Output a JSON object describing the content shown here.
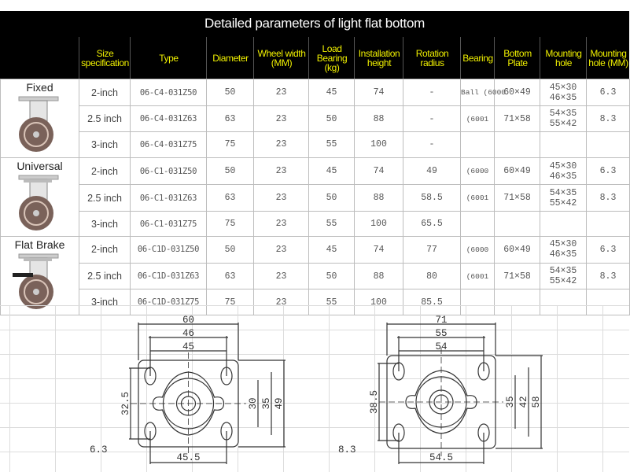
{
  "title": "Detailed parameters of light flat bottom",
  "headers": [
    "Size specification",
    "Type",
    "Diameter",
    "Wheel width (MM)",
    "Load Bearing (kg)",
    "Installation height",
    "Rotation radius",
    "Bearing",
    "Bottom Plate",
    "Mounting hole",
    "Mounting hole (MM)"
  ],
  "groups": [
    {
      "name": "Fixed",
      "icon": "fixed-caster-image",
      "rows": [
        {
          "size": "2-inch",
          "type": "06-C4-031Z50",
          "diameter": "50",
          "width": "23",
          "load": "45",
          "height": "74",
          "radius": "-",
          "bearing": "Ball (6000",
          "plate": "60×49",
          "holes": "45×30 46×35",
          "hole_mm": "6.3"
        },
        {
          "size": "2.5 inch",
          "type": "06-C4-031Z63",
          "diameter": "63",
          "width": "23",
          "load": "50",
          "height": "88",
          "radius": "-",
          "bearing": "(6001",
          "plate": "71×58",
          "holes": "54×35 55×42",
          "hole_mm": "8.3"
        },
        {
          "size": "3-inch",
          "type": "06-C4-031Z75",
          "diameter": "75",
          "width": "23",
          "load": "55",
          "height": "100",
          "radius": "-",
          "bearing": "",
          "plate": "",
          "holes": "",
          "hole_mm": ""
        }
      ]
    },
    {
      "name": "Universal",
      "icon": "swivel-caster-image",
      "rows": [
        {
          "size": "2-inch",
          "type": "06-C1-031Z50",
          "diameter": "50",
          "width": "23",
          "load": "45",
          "height": "74",
          "radius": "49",
          "bearing": "(6000",
          "plate": "60×49",
          "holes": "45×30 46×35",
          "hole_mm": "6.3"
        },
        {
          "size": "2.5 inch",
          "type": "06-C1-031Z63",
          "diameter": "63",
          "width": "23",
          "load": "50",
          "height": "88",
          "radius": "58.5",
          "bearing": "(6001",
          "plate": "71×58",
          "holes": "54×35 55×42",
          "hole_mm": "8.3"
        },
        {
          "size": "3-inch",
          "type": "06-C1-031Z75",
          "diameter": "75",
          "width": "23",
          "load": "55",
          "height": "100",
          "radius": "65.5",
          "bearing": "",
          "plate": "",
          "holes": "",
          "hole_mm": ""
        }
      ]
    },
    {
      "name": "Flat Brake",
      "icon": "brake-caster-image",
      "rows": [
        {
          "size": "2-inch",
          "type": "06-C1D-031Z50",
          "diameter": "50",
          "width": "23",
          "load": "45",
          "height": "74",
          "radius": "77",
          "bearing": "(6000",
          "plate": "60×49",
          "holes": "45×30 46×35",
          "hole_mm": "6.3"
        },
        {
          "size": "2.5 inch",
          "type": "06-C1D-031Z63",
          "diameter": "63",
          "width": "23",
          "load": "50",
          "height": "88",
          "radius": "80",
          "bearing": "(6001",
          "plate": "71×58",
          "holes": "54×35 55×42",
          "hole_mm": "8.3"
        },
        {
          "size": "3-inch",
          "type": "06-C1D-031Z75",
          "diameter": "75",
          "width": "23",
          "load": "55",
          "height": "100",
          "radius": "85.5",
          "bearing": "",
          "plate": "",
          "holes": "",
          "hole_mm": ""
        }
      ]
    }
  ],
  "drawings": [
    {
      "top": [
        "60",
        "46",
        "45"
      ],
      "left": "32.5",
      "right": [
        "30",
        "35",
        "49"
      ],
      "bottom": "45.5",
      "hole": "6.3"
    },
    {
      "top": [
        "71",
        "55",
        "54"
      ],
      "left": "38.5",
      "right": [
        "35",
        "42",
        "58"
      ],
      "bottom": "54.5",
      "hole": "8.3"
    }
  ],
  "colors": {
    "header_bg": "#000000",
    "header_text": "#f0f000",
    "wheel": "#7a625a"
  }
}
